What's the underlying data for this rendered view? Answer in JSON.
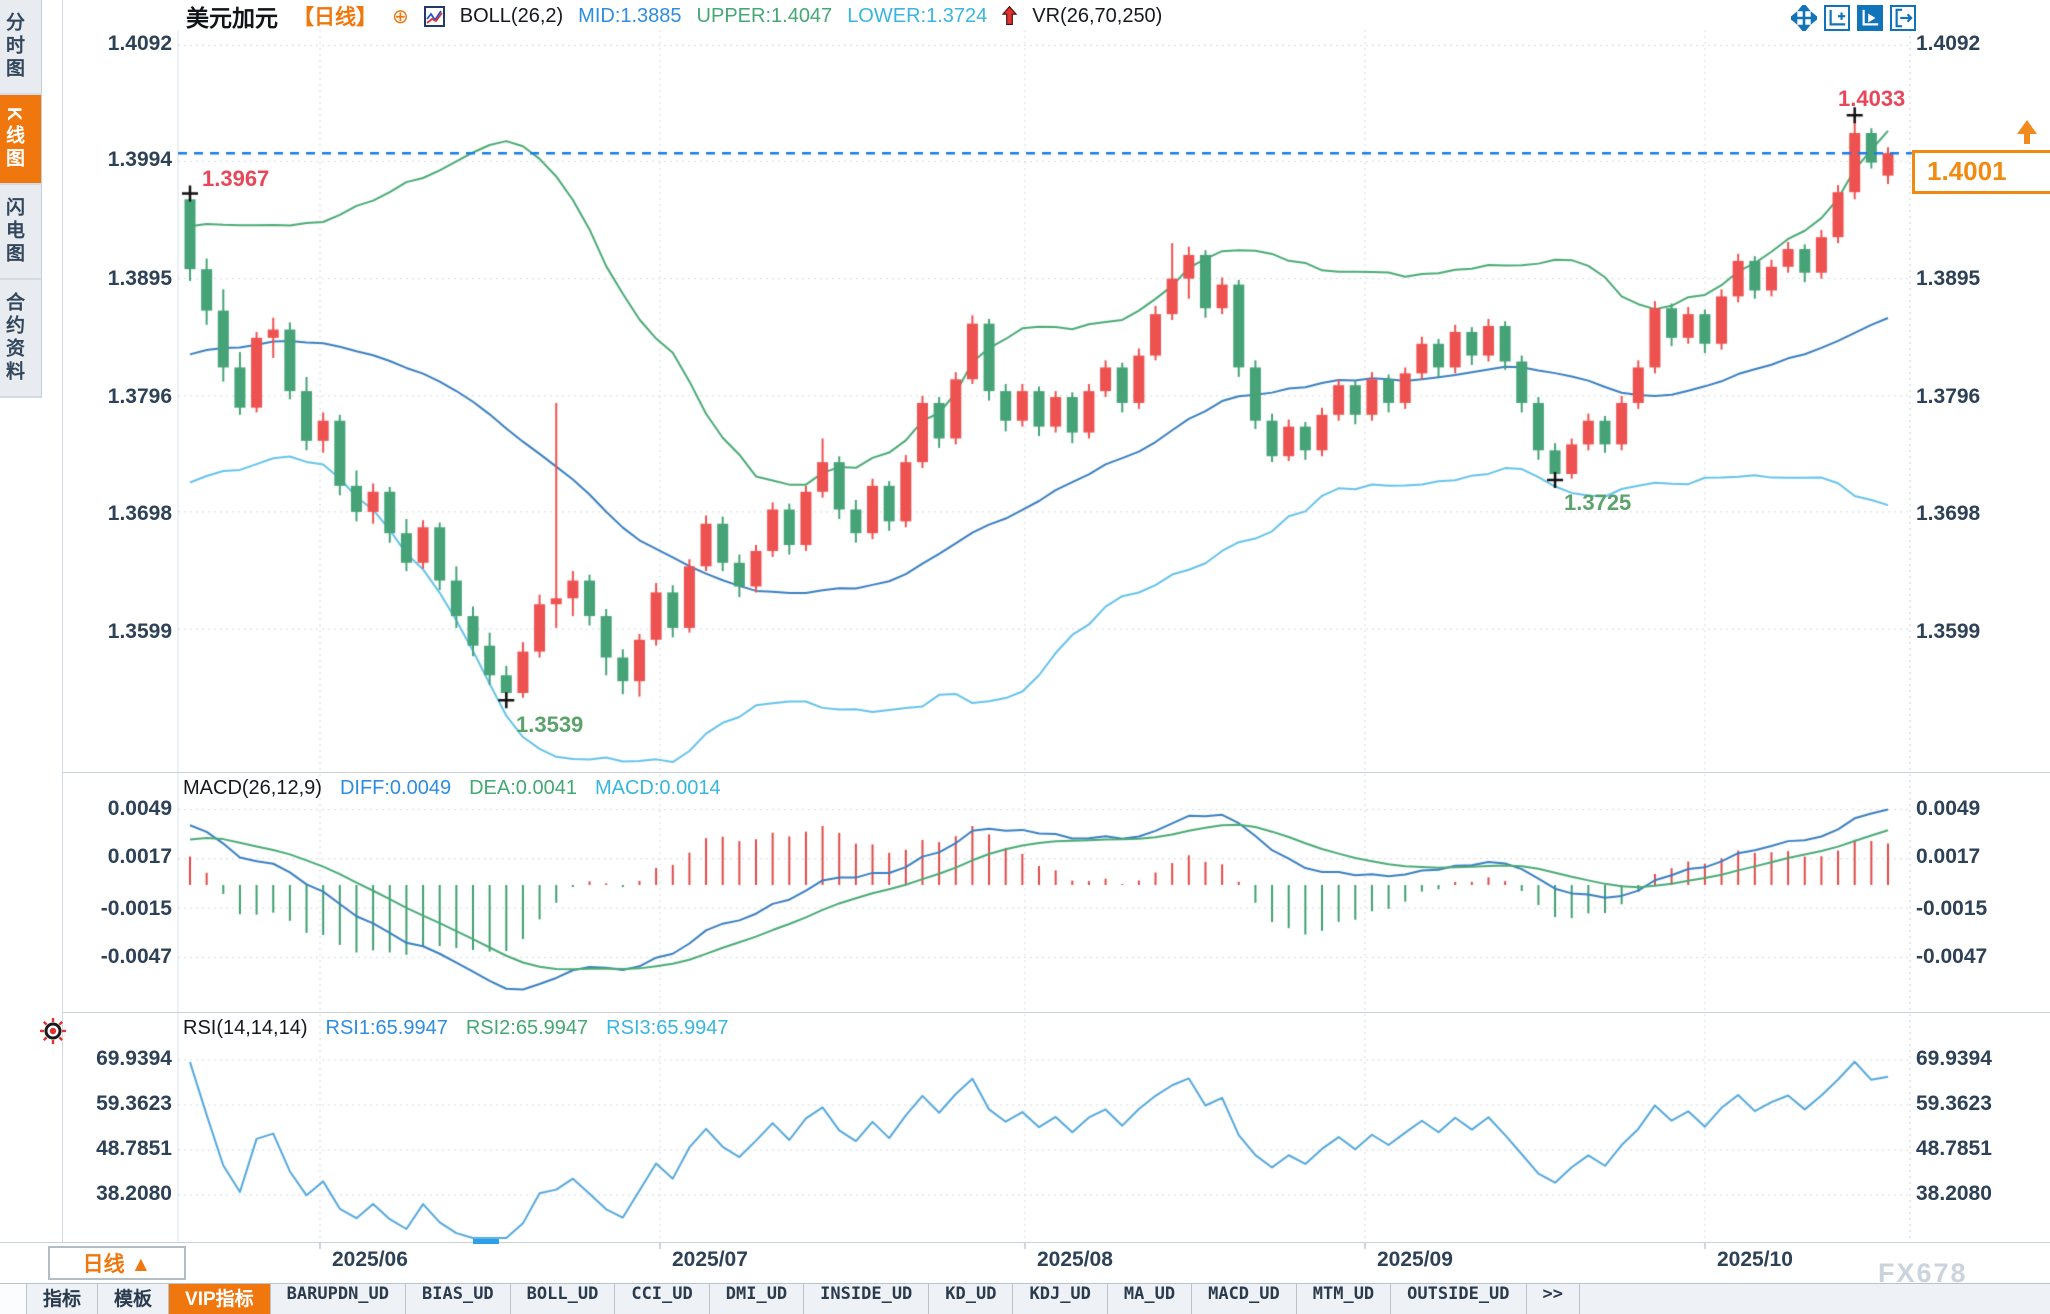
{
  "header": {
    "symbol": "美元加元",
    "period_tag": "【日线】",
    "plus_icon": "⊕",
    "boll_label": "BOLL(26,2)",
    "mid": "MID:1.3885",
    "upper": "UPPER:1.4047",
    "lower": "LOWER:1.3724",
    "vr_label": "VR(26,70,250)"
  },
  "sidebar": {
    "items": [
      {
        "label": "分时图",
        "active": false
      },
      {
        "label": "K线图",
        "active": true
      },
      {
        "label": "闪电图",
        "active": false
      },
      {
        "label": "合约资料",
        "active": false
      }
    ]
  },
  "toolbar": {
    "icons": [
      "pan-icon",
      "axis-zoom-icon",
      "axis-playback-icon",
      "export-icon"
    ]
  },
  "axes": {
    "price": [
      "1.4092",
      "1.3994",
      "1.3895",
      "1.3796",
      "1.3698",
      "1.3599"
    ],
    "macd": [
      "0.0049",
      "0.0017",
      "-0.0015",
      "-0.0047"
    ],
    "rsi": [
      "69.9394",
      "59.3623",
      "48.7851",
      "38.2080"
    ],
    "dates": [
      "2025/06",
      "2025/07",
      "2025/08",
      "2025/09",
      "2025/10"
    ]
  },
  "panels": {
    "macd": {
      "title": "MACD(26,12,9)",
      "diff": "DIFF:0.0049",
      "dea": "DEA:0.0041",
      "macd": "MACD:0.0014"
    },
    "rsi": {
      "title": "RSI(14,14,14)",
      "rsi1": "RSI1:65.9947",
      "rsi2": "RSI2:65.9947",
      "rsi3": "RSI3:65.9947"
    }
  },
  "annotations": {
    "first_high": "1.3967",
    "june_low": "1.3539",
    "sep_low": "1.3725",
    "oct_high": "1.4033",
    "current_price": "1.4001"
  },
  "bottom": {
    "period_label": "日线",
    "period_arrow": "▲",
    "tabs": [
      {
        "label": "指标"
      },
      {
        "label": "模板"
      },
      {
        "label": "VIP指标"
      },
      {
        "label": "BARUPDN_UD"
      },
      {
        "label": "BIAS_UD"
      },
      {
        "label": "BOLL_UD"
      },
      {
        "label": "CCI_UD"
      },
      {
        "label": "DMI_UD"
      },
      {
        "label": "INSIDE_UD"
      },
      {
        "label": "KD_UD"
      },
      {
        "label": "KDJ_UD"
      },
      {
        "label": "MA_UD"
      },
      {
        "label": "MACD_UD"
      },
      {
        "label": "MTM_UD"
      },
      {
        "label": "OUTSIDE_UD"
      },
      {
        "label": ">>"
      }
    ],
    "watermark": "FX678"
  },
  "colors": {
    "up": "#ee5250",
    "down": "#45a377",
    "boll_mid": "#3a7fc1",
    "boll_upper": "#4aaa74",
    "boll_lower": "#65c3ea",
    "macd_diff": "#3a7fc1",
    "macd_dea": "#4aaa74",
    "hist_pos": "#e04a48",
    "hist_neg": "#3f9e70",
    "rsi_line": "#55a8dd",
    "grid": "#d4dae0",
    "current_line": "#1a7ce8",
    "accent_orange": "#f0770e",
    "annotation_red": "#e8475a",
    "annotation_green": "#5ca36b",
    "axis_text": "#2e4257",
    "marker": "#111111"
  },
  "chart_data": {
    "type": "candlestick",
    "title": "美元加元 日线 (USD/CAD Daily)",
    "x_labels": [
      "2025/06",
      "2025/07",
      "2025/08",
      "2025/09",
      "2025/10"
    ],
    "price_ticks": [
      1.4092,
      1.3994,
      1.3895,
      1.3796,
      1.3698,
      1.3599
    ],
    "macd_ticks": [
      0.0049,
      0.0017,
      -0.0015,
      -0.0047
    ],
    "rsi_ticks": [
      69.9394,
      59.3623,
      48.7851,
      38.208
    ],
    "boll": {
      "period": 26,
      "k": 2,
      "mid": 1.3885,
      "upper": 1.4047,
      "lower": 1.3724
    },
    "macd": {
      "params": [
        26,
        12,
        9
      ],
      "diff": 0.0049,
      "dea": 0.0041,
      "macd": 0.0014
    },
    "rsi": {
      "params": [
        14,
        14,
        14
      ],
      "rsi1": 65.9947,
      "rsi2": 65.9947,
      "rsi3": 65.9947
    },
    "key_points": {
      "first_high": 1.3967,
      "june_low": 1.3539,
      "sep_low": 1.3725,
      "oct_high": 1.4033,
      "last_close": 1.4001
    },
    "candles": [
      [
        1.3962,
        1.3967,
        1.3893,
        1.3903
      ],
      [
        1.3903,
        1.3912,
        1.3856,
        1.3868
      ],
      [
        1.3868,
        1.3886,
        1.3808,
        1.382
      ],
      [
        1.382,
        1.3833,
        1.378,
        1.3786
      ],
      [
        1.3786,
        1.385,
        1.3782,
        1.3845
      ],
      [
        1.3845,
        1.3862,
        1.3828,
        1.3852
      ],
      [
        1.3852,
        1.3858,
        1.3793,
        1.38
      ],
      [
        1.38,
        1.3812,
        1.375,
        1.3758
      ],
      [
        1.3758,
        1.3782,
        1.3748,
        1.3775
      ],
      [
        1.3775,
        1.378,
        1.3712,
        1.372
      ],
      [
        1.372,
        1.3733,
        1.369,
        1.3698
      ],
      [
        1.3698,
        1.3722,
        1.3688,
        1.3715
      ],
      [
        1.3715,
        1.3719,
        1.3672,
        1.368
      ],
      [
        1.368,
        1.3692,
        1.3648,
        1.3655
      ],
      [
        1.3655,
        1.3691,
        1.365,
        1.3685
      ],
      [
        1.3685,
        1.3689,
        1.3632,
        1.364
      ],
      [
        1.364,
        1.3652,
        1.36,
        1.361
      ],
      [
        1.361,
        1.3618,
        1.3576,
        1.3585
      ],
      [
        1.3585,
        1.3596,
        1.3552,
        1.356
      ],
      [
        1.356,
        1.3568,
        1.3539,
        1.3545
      ],
      [
        1.3545,
        1.3588,
        1.3541,
        1.358
      ],
      [
        1.358,
        1.3628,
        1.3575,
        1.362
      ],
      [
        1.362,
        1.379,
        1.36,
        1.3625
      ],
      [
        1.3625,
        1.3648,
        1.361,
        1.364
      ],
      [
        1.364,
        1.3645,
        1.3602,
        1.361
      ],
      [
        1.361,
        1.3616,
        1.356,
        1.3575
      ],
      [
        1.3575,
        1.3582,
        1.3544,
        1.3555
      ],
      [
        1.3555,
        1.3595,
        1.3542,
        1.359
      ],
      [
        1.359,
        1.3638,
        1.3585,
        1.363
      ],
      [
        1.363,
        1.3636,
        1.3592,
        1.36
      ],
      [
        1.36,
        1.3658,
        1.3596,
        1.3652
      ],
      [
        1.3652,
        1.3695,
        1.3648,
        1.3688
      ],
      [
        1.3688,
        1.3694,
        1.3648,
        1.3655
      ],
      [
        1.3655,
        1.3662,
        1.3626,
        1.3635
      ],
      [
        1.3635,
        1.367,
        1.363,
        1.3665
      ],
      [
        1.3665,
        1.3706,
        1.366,
        1.37
      ],
      [
        1.37,
        1.3705,
        1.3662,
        1.367
      ],
      [
        1.367,
        1.372,
        1.3665,
        1.3715
      ],
      [
        1.3715,
        1.376,
        1.371,
        1.374
      ],
      [
        1.374,
        1.3745,
        1.3692,
        1.37
      ],
      [
        1.37,
        1.3708,
        1.3672,
        1.368
      ],
      [
        1.368,
        1.3726,
        1.3675,
        1.372
      ],
      [
        1.372,
        1.3724,
        1.3682,
        1.369
      ],
      [
        1.369,
        1.3746,
        1.3685,
        1.374
      ],
      [
        1.374,
        1.3796,
        1.3735,
        1.379
      ],
      [
        1.379,
        1.3795,
        1.3752,
        1.376
      ],
      [
        1.376,
        1.3816,
        1.3755,
        1.381
      ],
      [
        1.381,
        1.3864,
        1.3806,
        1.3857
      ],
      [
        1.3857,
        1.3861,
        1.3792,
        1.38
      ],
      [
        1.38,
        1.3806,
        1.3766,
        1.3775
      ],
      [
        1.3775,
        1.3806,
        1.377,
        1.38
      ],
      [
        1.38,
        1.3804,
        1.3762,
        1.377
      ],
      [
        1.377,
        1.38,
        1.3765,
        1.3795
      ],
      [
        1.3795,
        1.3799,
        1.3756,
        1.3765
      ],
      [
        1.3765,
        1.3806,
        1.376,
        1.38
      ],
      [
        1.38,
        1.3826,
        1.3795,
        1.382
      ],
      [
        1.382,
        1.3824,
        1.3782,
        1.379
      ],
      [
        1.379,
        1.3836,
        1.3785,
        1.383
      ],
      [
        1.383,
        1.3872,
        1.3826,
        1.3865
      ],
      [
        1.3865,
        1.3925,
        1.386,
        1.3895
      ],
      [
        1.3895,
        1.3922,
        1.3878,
        1.3915
      ],
      [
        1.3915,
        1.3919,
        1.3862,
        1.387
      ],
      [
        1.387,
        1.3896,
        1.3865,
        1.389
      ],
      [
        1.389,
        1.3894,
        1.3812,
        1.382
      ],
      [
        1.382,
        1.3826,
        1.3768,
        1.3775
      ],
      [
        1.3775,
        1.3781,
        1.374,
        1.3745
      ],
      [
        1.3745,
        1.3776,
        1.3741,
        1.377
      ],
      [
        1.377,
        1.3774,
        1.3742,
        1.375
      ],
      [
        1.375,
        1.3786,
        1.3745,
        1.378
      ],
      [
        1.378,
        1.381,
        1.3775,
        1.3805
      ],
      [
        1.3805,
        1.3809,
        1.3772,
        1.378
      ],
      [
        1.378,
        1.3816,
        1.3775,
        1.381
      ],
      [
        1.381,
        1.3814,
        1.3782,
        1.379
      ],
      [
        1.379,
        1.382,
        1.3785,
        1.3815
      ],
      [
        1.3815,
        1.3846,
        1.381,
        1.384
      ],
      [
        1.384,
        1.3844,
        1.3812,
        1.382
      ],
      [
        1.382,
        1.3856,
        1.3815,
        1.385
      ],
      [
        1.385,
        1.3854,
        1.3822,
        1.383
      ],
      [
        1.383,
        1.3861,
        1.3825,
        1.3855
      ],
      [
        1.3855,
        1.3859,
        1.3818,
        1.3825
      ],
      [
        1.3825,
        1.383,
        1.3782,
        1.379
      ],
      [
        1.379,
        1.3795,
        1.3742,
        1.375
      ],
      [
        1.375,
        1.3756,
        1.3725,
        1.373
      ],
      [
        1.373,
        1.376,
        1.3726,
        1.3755
      ],
      [
        1.3755,
        1.3781,
        1.375,
        1.3775
      ],
      [
        1.3775,
        1.3779,
        1.3748,
        1.3755
      ],
      [
        1.3755,
        1.3796,
        1.375,
        1.379
      ],
      [
        1.379,
        1.3826,
        1.3785,
        1.382
      ],
      [
        1.382,
        1.3876,
        1.3815,
        1.387
      ],
      [
        1.387,
        1.3874,
        1.3838,
        1.3845
      ],
      [
        1.3845,
        1.3871,
        1.384,
        1.3865
      ],
      [
        1.3865,
        1.3869,
        1.3832,
        1.384
      ],
      [
        1.384,
        1.3886,
        1.3835,
        1.388
      ],
      [
        1.388,
        1.3916,
        1.3875,
        1.391
      ],
      [
        1.391,
        1.3914,
        1.3878,
        1.3885
      ],
      [
        1.3885,
        1.3911,
        1.388,
        1.3905
      ],
      [
        1.3905,
        1.3926,
        1.39,
        1.392
      ],
      [
        1.392,
        1.3924,
        1.3892,
        1.39
      ],
      [
        1.39,
        1.3936,
        1.3895,
        1.393
      ],
      [
        1.393,
        1.3974,
        1.3925,
        1.3968
      ],
      [
        1.3968,
        1.4033,
        1.3962,
        1.4018
      ],
      [
        1.4018,
        1.4022,
        1.3988,
        1.3993
      ],
      [
        1.3982,
        1.4006,
        1.3975,
        1.4001
      ]
    ],
    "marker_indices": {
      "first_high": 0,
      "june_low": 19,
      "sep_low": 82,
      "oct_high": 100
    }
  }
}
